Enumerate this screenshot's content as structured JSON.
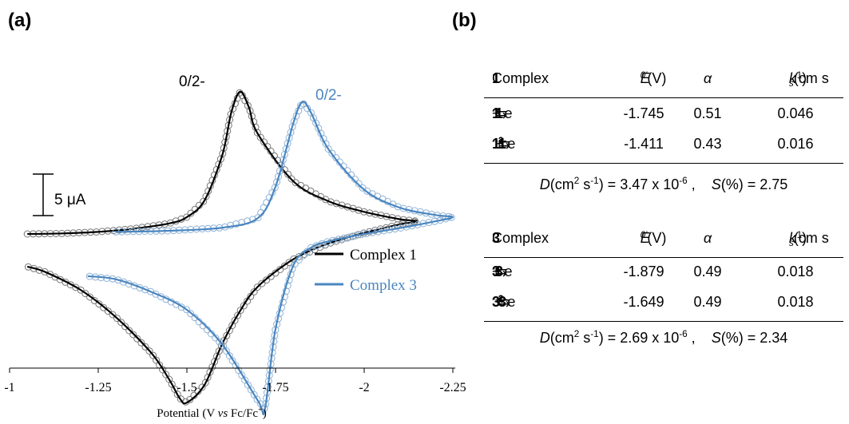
{
  "panel_a": {
    "label": "(a)"
  },
  "panel_b": {
    "label": "(b)"
  },
  "chart_data": {
    "type": "line",
    "xlabel": "Potential (V vs Fc/Fc+)",
    "xlabel_parts": {
      "pre": "Potential (V ",
      "vs": "vs",
      "post": " Fc/Fc",
      "sup": "+",
      "close": ")"
    },
    "xlim": [
      -1,
      -2.25
    ],
    "x_ticks": [
      -1,
      -1.25,
      -1.5,
      -1.75,
      -2,
      -2.25
    ],
    "x_tick_labels": [
      "-1",
      "-1.25",
      "-1.5",
      "-1.75",
      "-2",
      "-2.25"
    ],
    "scale_bar": {
      "label": "5 μA",
      "value_uA": 5
    },
    "annotations": [
      "0/2-",
      "0/2-"
    ],
    "legend": {
      "placement": "lower-right",
      "entries": [
        "Complex 1",
        "Complex 3"
      ]
    },
    "series": [
      {
        "name": "Complex 1",
        "color": "#000000",
        "x": [
          -1.05,
          -1.15,
          -1.25,
          -1.35,
          -1.45,
          -1.5,
          -1.55,
          -1.6,
          -1.625,
          -1.65,
          -1.675,
          -1.7,
          -1.8,
          -1.9,
          -2.0,
          -2.1,
          -2.15,
          -2.1,
          -2.0,
          -1.9,
          -1.8,
          -1.7,
          -1.65,
          -1.6,
          -1.55,
          -1.5,
          -1.48,
          -1.45,
          -1.4,
          -1.3,
          -1.2,
          -1.1,
          -1.05
        ],
        "y_uA": [
          0.0,
          0.05,
          0.2,
          0.5,
          1.0,
          1.6,
          3.2,
          7.5,
          11.5,
          13.5,
          12.0,
          9.5,
          5.0,
          3.1,
          2.1,
          1.4,
          1.2,
          0.9,
          0.1,
          -0.9,
          -2.4,
          -5.0,
          -7.3,
          -10.4,
          -14.3,
          -16.0,
          -15.6,
          -13.8,
          -11.3,
          -7.9,
          -5.3,
          -3.6,
          -3.1
        ]
      },
      {
        "name": "Complex 3",
        "color": "#4a86c0",
        "x": [
          -1.3,
          -1.45,
          -1.6,
          -1.7,
          -1.75,
          -1.8,
          -1.825,
          -1.85,
          -1.9,
          -2.0,
          -2.1,
          -2.2,
          -2.25,
          -2.2,
          -2.1,
          -2.0,
          -1.9,
          -1.85,
          -1.8,
          -1.75,
          -1.72,
          -1.7,
          -1.6,
          -1.5,
          -1.4,
          -1.3,
          -1.22
        ],
        "y_uA": [
          0.2,
          0.3,
          0.6,
          1.5,
          4.5,
          10.5,
          12.5,
          11.5,
          8.0,
          4.2,
          2.5,
          1.8,
          1.6,
          1.2,
          0.55,
          0.0,
          -0.7,
          -1.3,
          -3.0,
          -9.0,
          -16.6,
          -15.8,
          -10.5,
          -7.2,
          -5.5,
          -4.3,
          -4.0
        ]
      }
    ]
  },
  "table1": {
    "header": {
      "c1_pre": "Complex ",
      "c1_num": "1",
      "c2_var": "E",
      "c2_sup": "0′",
      "c2_unit": " (V)",
      "c3": "α",
      "c4_var": "k",
      "c4_sub": "s",
      "c4_unit": "(cm s",
      "c4_sup": "-1",
      "c4_close": ")"
    },
    "rows": [
      {
        "a": "1",
        "a_sup": "",
        "mid": " + e",
        "e_sup": "-",
        "arrow": " ⇆ ",
        "b": "1",
        "b_sup": "-",
        "E": "-1.745",
        "alpha": "0.51",
        "ks": "0.046"
      },
      {
        "a": "1",
        "a_sup": "-",
        "mid": " + e",
        "e_sup": "-",
        "arrow": " ⇆ ",
        "b": "1",
        "b_sup": "2-",
        "E": "-1.411",
        "alpha": "0.43",
        "ks": "0.016"
      }
    ],
    "summary": {
      "D_var": "D",
      "D_unit_pre": "(cm",
      "D_unit_sup1": "2",
      "D_unit_mid": " s",
      "D_unit_sup2": "-1",
      "D_val_pre": ") = 3.47 x 10",
      "D_exp": "-6",
      "sep": " ,    ",
      "S_var": "S",
      "S_val": "(%) = 2.75"
    }
  },
  "table3": {
    "header": {
      "c1_pre": "Complex ",
      "c1_num": "3",
      "c2_var": "E",
      "c2_sup": "0′",
      "c2_unit": " (V)",
      "c3": "α",
      "c4_var": "k",
      "c4_sub": "s",
      "c4_unit": "(cm s",
      "c4_sup": "-1",
      "c4_close": ")"
    },
    "rows": [
      {
        "a": "3",
        "a_sup": "",
        "mid": " + e",
        "e_sup": "-",
        "arrow": " ⇆ ",
        "b": "3",
        "b_sup": "-",
        "E": "-1.879",
        "alpha": "0.49",
        "ks": "0.018"
      },
      {
        "a": "3",
        "a_sup": "-",
        "mid": " + e",
        "e_sup": "-",
        "arrow": " ⇆ ",
        "b": "3",
        "b_sup": "2-",
        "E": "-1.649",
        "alpha": "0.49",
        "ks": "0.018"
      }
    ],
    "summary": {
      "D_var": "D",
      "D_unit_pre": "(cm",
      "D_unit_sup1": "2",
      "D_unit_mid": " s",
      "D_unit_sup2": "-1",
      "D_val_pre": ") = 2.69 x 10",
      "D_exp": "-6",
      "sep": " ,    ",
      "S_var": "S",
      "S_val": "(%) = 2.34"
    }
  }
}
